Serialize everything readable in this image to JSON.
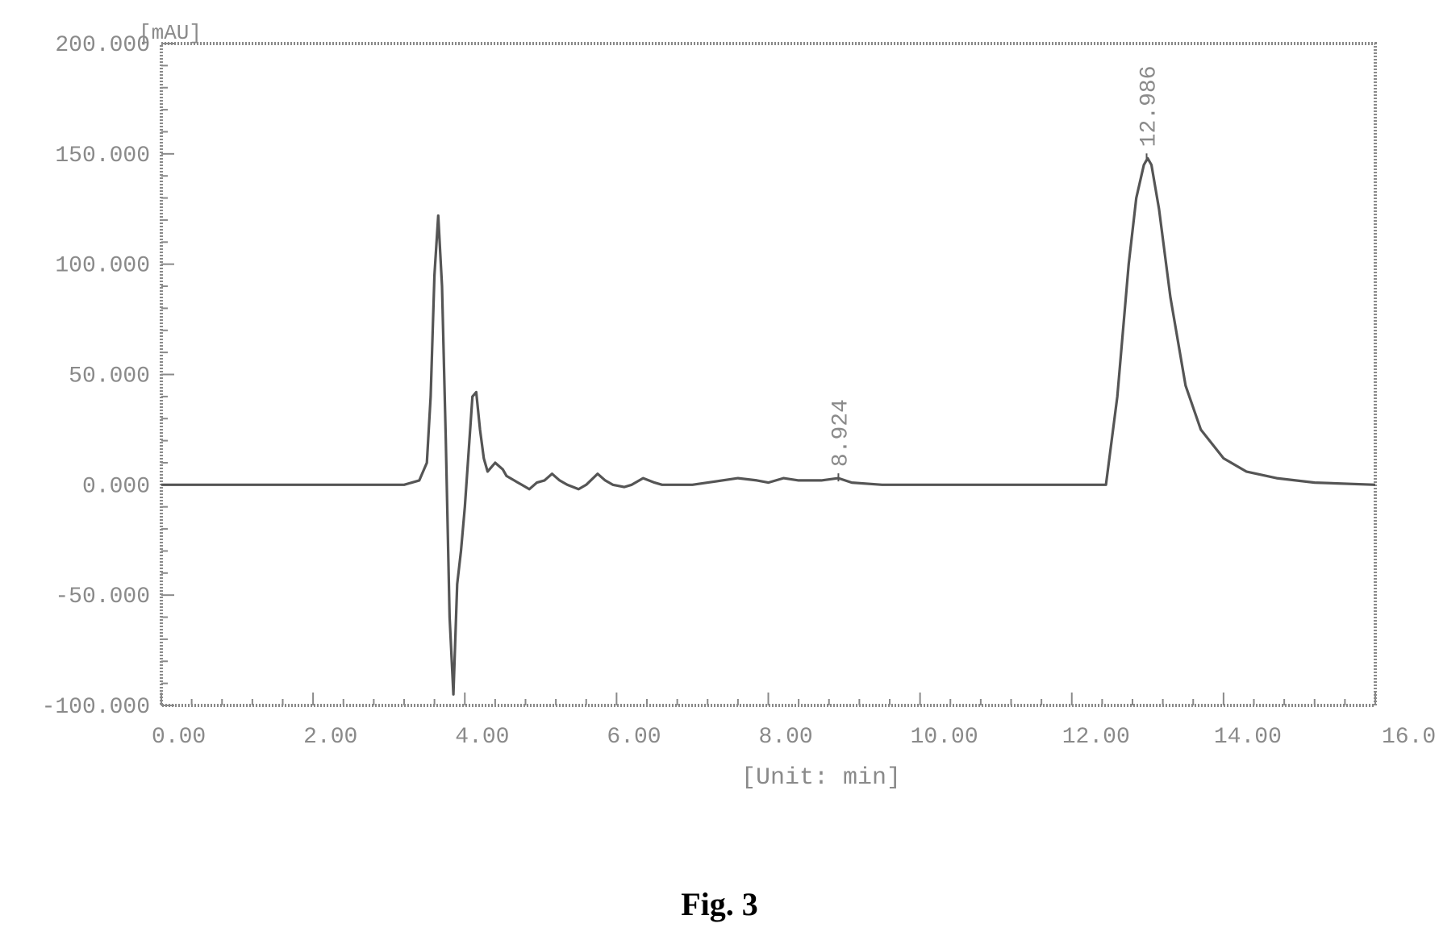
{
  "figure": {
    "caption": "Fig. 3"
  },
  "colors": {
    "axis": "#8a8a8a",
    "trace": "#555555",
    "text": "#8a8a8a"
  },
  "chart_data": {
    "type": "line",
    "title": "",
    "ylabel": "[mAU]",
    "xlabel": "[Unit: min]",
    "xlim": [
      0,
      16
    ],
    "ylim": [
      -100,
      200
    ],
    "grid": false,
    "legend": "none",
    "x_ticks": [
      {
        "value": 0,
        "label": "0.00"
      },
      {
        "value": 2,
        "label": "2.00"
      },
      {
        "value": 4,
        "label": "4.00"
      },
      {
        "value": 6,
        "label": "6.00"
      },
      {
        "value": 8,
        "label": "8.00"
      },
      {
        "value": 10,
        "label": "10.00"
      },
      {
        "value": 12,
        "label": "12.00"
      },
      {
        "value": 14,
        "label": "14.00"
      },
      {
        "value": 16,
        "label": "16.0"
      }
    ],
    "y_ticks": [
      {
        "value": 200,
        "label": "200.000"
      },
      {
        "value": 150,
        "label": "150.000"
      },
      {
        "value": 100,
        "label": "100.000"
      },
      {
        "value": 50,
        "label": "50.000"
      },
      {
        "value": 0,
        "label": "0.000"
      },
      {
        "value": -50,
        "label": "-50.000"
      },
      {
        "value": -100,
        "label": "-100.000"
      }
    ],
    "peak_labels": [
      {
        "x": 8.924,
        "y": 3,
        "label": "8.924"
      },
      {
        "x": 12.986,
        "y": 148,
        "label": "12.986"
      }
    ],
    "series": [
      {
        "x": [
          0,
          3.2,
          3.4,
          3.5,
          3.55,
          3.6,
          3.65,
          3.7,
          3.75,
          3.8,
          3.85,
          3.9,
          3.95,
          4.0,
          4.05,
          4.1,
          4.15,
          4.2,
          4.25,
          4.3,
          4.35,
          4.4,
          4.5,
          4.55,
          4.6,
          4.7,
          4.75,
          4.85,
          4.95,
          5.05,
          5.15,
          5.25,
          5.35,
          5.5,
          5.6,
          5.75,
          5.85,
          5.95,
          6.1,
          6.2,
          6.35,
          6.5,
          6.6,
          6.7,
          7.0,
          7.2,
          7.6,
          7.85,
          8.0,
          8.2,
          8.4,
          8.7,
          8.924,
          9.1,
          9.5,
          10.0,
          11.0,
          12.0,
          12.45,
          12.6,
          12.75,
          12.85,
          12.95,
          13.0,
          13.05,
          13.15,
          13.3,
          13.5,
          13.7,
          14.0,
          14.3,
          14.7,
          15.2,
          16.0
        ],
        "y": [
          0,
          0,
          2,
          10,
          40,
          95,
          122,
          90,
          20,
          -60,
          -95,
          -45,
          -30,
          -10,
          15,
          40,
          42,
          25,
          12,
          6,
          8,
          10,
          7,
          4,
          3,
          1,
          0,
          -2,
          1,
          2,
          5,
          2,
          0,
          -2,
          0,
          5,
          2,
          0,
          -1,
          0,
          3,
          1,
          0,
          0,
          0,
          1,
          3,
          2,
          1,
          3,
          2,
          2,
          3,
          1,
          0,
          0,
          0,
          0,
          0,
          40,
          100,
          130,
          145,
          148,
          145,
          125,
          85,
          45,
          25,
          12,
          6,
          3,
          1,
          0
        ]
      }
    ]
  }
}
